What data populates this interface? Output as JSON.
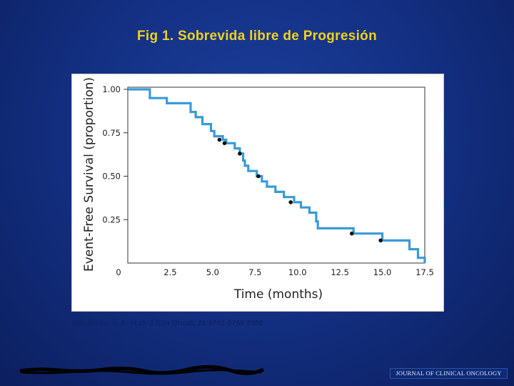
{
  "slide": {
    "title": "Fig 1. Sobrevida libre de Progresión",
    "citation": "Matulonis, U. A. et al. J Clin Oncol; 26:5761-5766 2008",
    "journal_banner": "JOURNAL OF CLINICAL ONCOLOGY"
  },
  "colors": {
    "background": "#143185",
    "title": "#f2d21b",
    "curve": "#3a9ad9",
    "censor_mark": "#111111"
  },
  "chart_data": {
    "type": "line",
    "subtype": "kaplan-meier step",
    "xlabel": "Time (months)",
    "ylabel": "Event-Free Survival (proportion)",
    "xlim": [
      0,
      17.5
    ],
    "ylim": [
      0,
      1.0
    ],
    "x_ticks": [
      "0",
      "2.5",
      "5.0",
      "7.5",
      "10.0",
      "12.5",
      "15.0",
      "17.5"
    ],
    "y_ticks": [
      "0.25",
      "0.50",
      "0.75",
      "1.00"
    ],
    "grid": false,
    "legend": "none",
    "series": [
      {
        "steps": [
          [
            0,
            1.0
          ],
          [
            1.3,
            1.0
          ],
          [
            1.3,
            0.95
          ],
          [
            2.3,
            0.95
          ],
          [
            2.3,
            0.92
          ],
          [
            3.7,
            0.92
          ],
          [
            3.7,
            0.87
          ],
          [
            4.0,
            0.87
          ],
          [
            4.0,
            0.84
          ],
          [
            4.4,
            0.84
          ],
          [
            4.4,
            0.8
          ],
          [
            4.9,
            0.8
          ],
          [
            4.9,
            0.76
          ],
          [
            5.1,
            0.76
          ],
          [
            5.1,
            0.73
          ],
          [
            5.6,
            0.73
          ],
          [
            5.6,
            0.71
          ],
          [
            5.8,
            0.71
          ],
          [
            5.8,
            0.69
          ],
          [
            6.3,
            0.69
          ],
          [
            6.3,
            0.66
          ],
          [
            6.6,
            0.66
          ],
          [
            6.6,
            0.63
          ],
          [
            6.8,
            0.63
          ],
          [
            6.8,
            0.59
          ],
          [
            6.9,
            0.59
          ],
          [
            6.9,
            0.56
          ],
          [
            7.1,
            0.56
          ],
          [
            7.1,
            0.53
          ],
          [
            7.6,
            0.53
          ],
          [
            7.6,
            0.5
          ],
          [
            7.9,
            0.5
          ],
          [
            7.9,
            0.47
          ],
          [
            8.2,
            0.47
          ],
          [
            8.2,
            0.44
          ],
          [
            8.7,
            0.44
          ],
          [
            8.7,
            0.41
          ],
          [
            9.2,
            0.41
          ],
          [
            9.2,
            0.38
          ],
          [
            9.8,
            0.38
          ],
          [
            9.8,
            0.35
          ],
          [
            10.2,
            0.35
          ],
          [
            10.2,
            0.32
          ],
          [
            10.7,
            0.32
          ],
          [
            10.7,
            0.29
          ],
          [
            11.1,
            0.29
          ],
          [
            11.1,
            0.24
          ],
          [
            11.2,
            0.24
          ],
          [
            11.2,
            0.2
          ],
          [
            13.3,
            0.2
          ],
          [
            13.3,
            0.17
          ],
          [
            15.0,
            0.17
          ],
          [
            15.0,
            0.13
          ],
          [
            16.6,
            0.13
          ],
          [
            16.6,
            0.08
          ],
          [
            17.1,
            0.08
          ],
          [
            17.1,
            0.03
          ],
          [
            17.5,
            0.03
          ],
          [
            17.5,
            0.0
          ]
        ],
        "censored": [
          [
            5.4,
            0.71
          ],
          [
            5.7,
            0.69
          ],
          [
            6.6,
            0.63
          ],
          [
            7.7,
            0.5
          ],
          [
            9.6,
            0.35
          ],
          [
            13.2,
            0.17
          ],
          [
            14.9,
            0.13
          ]
        ]
      }
    ]
  }
}
